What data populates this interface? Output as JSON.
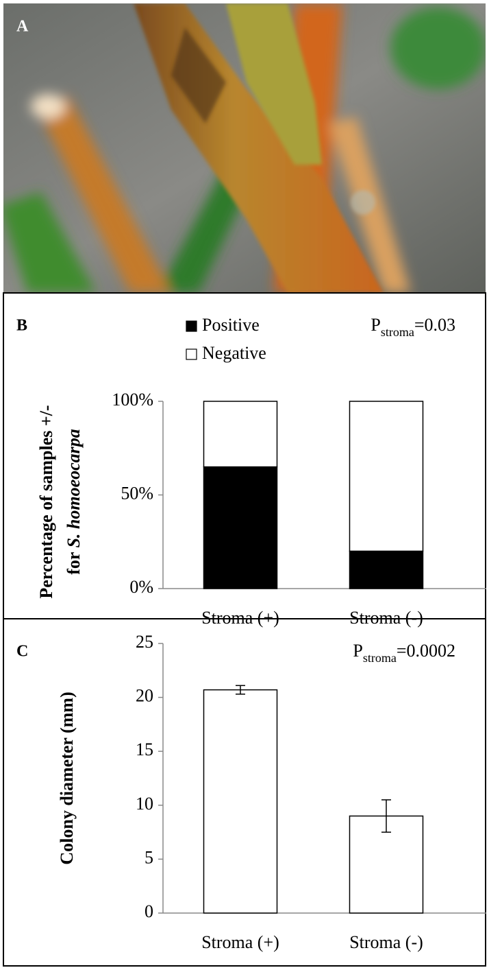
{
  "photo": {
    "label": "A"
  },
  "chart_data": [
    {
      "type": "stacked_bar",
      "panel_label": "B",
      "categories": [
        "Stroma (+)",
        "Stroma (-)"
      ],
      "series": [
        {
          "name": "Positive",
          "color": "#000000",
          "values": [
            65,
            20
          ]
        },
        {
          "name": "Negative",
          "color": "#ffffff",
          "values": [
            35,
            80
          ]
        }
      ],
      "ylim": [
        0,
        100
      ],
      "yticks": [
        {
          "value": 0,
          "label": "0%"
        },
        {
          "value": 50,
          "label": "50%"
        },
        {
          "value": 100,
          "label": "100%"
        }
      ],
      "y_label": {
        "line1": "Percentage of samples +/-",
        "line2": "for",
        "line2_italic": "S. homoeocarpa"
      },
      "annotation": {
        "main": "P",
        "sub": "stroma",
        "rest": "=0.03"
      }
    },
    {
      "type": "bar",
      "panel_label": "C",
      "categories": [
        "Stroma (+)",
        "Stroma (-)"
      ],
      "values": [
        20.7,
        9.0
      ],
      "errors": [
        0.4,
        1.5
      ],
      "color": "#ffffff",
      "ylim": [
        0,
        25
      ],
      "yticks": [
        0,
        5,
        10,
        15,
        20,
        25
      ],
      "y_label": "Colony diameter (mm)",
      "annotation": {
        "main": "P",
        "sub": "stroma",
        "rest": "=0.0002"
      }
    }
  ]
}
